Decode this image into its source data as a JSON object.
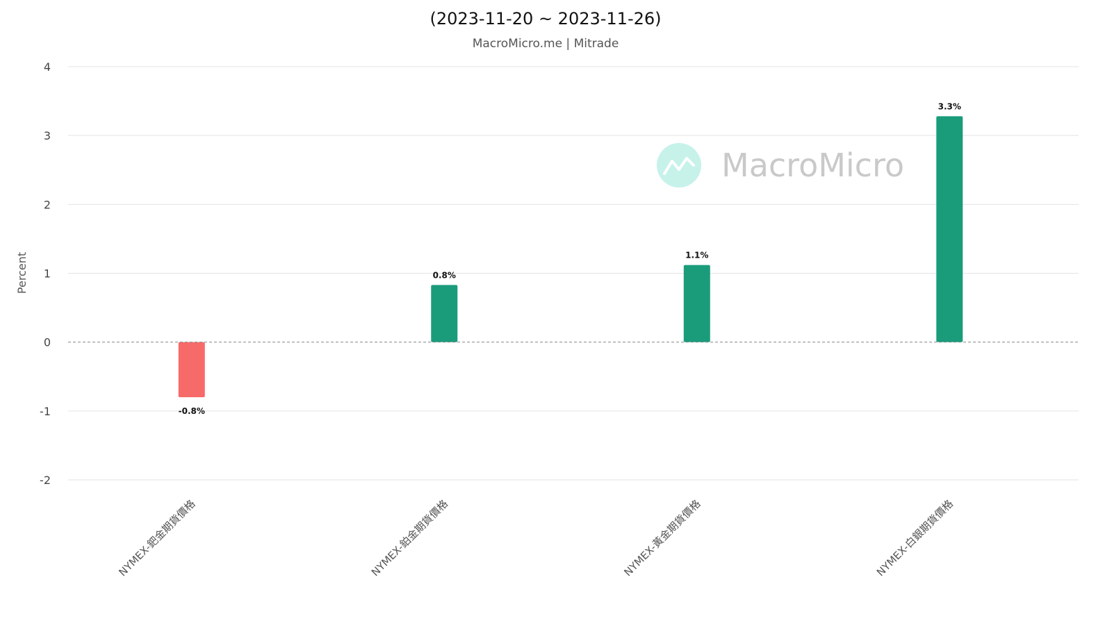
{
  "chart_data": {
    "type": "bar",
    "title": "(2023-11-20 ~ 2023-11-26)",
    "subtitle": "MacroMicro.me | Mitrade",
    "ylabel": "Percent",
    "xlabel": "",
    "ylim": [
      -2,
      4
    ],
    "yticks": [
      4,
      3,
      2,
      1,
      0,
      -1,
      -2
    ],
    "grid": true,
    "categories": [
      "NYMEX-鈀金期貨價格",
      "NYMEX-鉑金期貨價格",
      "NYMEX-黃金期貨價格",
      "NYMEX-白銀期貨價格"
    ],
    "values": [
      -0.8,
      0.83,
      1.12,
      3.28
    ],
    "data_labels": [
      "-0.8%",
      "0.8%",
      "1.1%",
      "3.3%"
    ],
    "colors": {
      "positive": "#1a9c7b",
      "negative": "#f76a6a"
    }
  },
  "watermark": {
    "text": "MacroMicro",
    "icon": "macromicro-logo-icon"
  }
}
